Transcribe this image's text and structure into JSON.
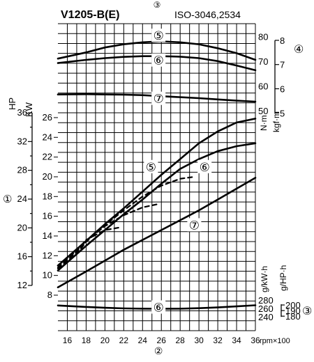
{
  "chart_data": {
    "type": "line",
    "title": "V1205-B(E)",
    "subtitle": "ISO-3046,2534",
    "x": {
      "label": "rpm×100",
      "marker": "②",
      "ticks": [
        "16",
        "18",
        "20",
        "22",
        "24",
        "26",
        "28",
        "30",
        "32",
        "34",
        "36"
      ],
      "range": [
        15,
        36
      ]
    },
    "left_axis_kw": {
      "unit": "KW",
      "ticks": [
        "8",
        "10",
        "12",
        "14",
        "16",
        "18",
        "20",
        "22",
        "24",
        "26"
      ],
      "range": [
        8,
        26
      ]
    },
    "left_axis_hp": {
      "unit": "HP",
      "marker": "①",
      "ticks": [
        "12",
        "16",
        "20",
        "24",
        "28",
        "32",
        "36"
      ],
      "range": [
        12,
        36
      ]
    },
    "torque_axis_nm": {
      "unit": "N·m",
      "ticks": [
        "50",
        "60",
        "70",
        "80"
      ],
      "range": [
        50,
        80
      ]
    },
    "torque_axis_kgfm": {
      "unit": "kgf·m",
      "marker": "④",
      "ticks": [
        "5",
        "6",
        "7",
        "8"
      ]
    },
    "fuel_axis_gkwh": {
      "unit": "g/kW·h",
      "ticks": [
        "240",
        "260",
        "280"
      ],
      "range": [
        240,
        280
      ]
    },
    "fuel_axis_ghph": {
      "unit": "g/HP·h",
      "marker": "③",
      "ticks": [
        "180",
        "190",
        "200"
      ]
    },
    "series": [
      {
        "name": "⑤",
        "group": "torque",
        "x": [
          15,
          18,
          20,
          22,
          24,
          26,
          28,
          30,
          32,
          34,
          36
        ],
        "y": [
          71,
          73.5,
          75.5,
          76.8,
          77.6,
          78,
          77.6,
          76.8,
          75.2,
          73.2,
          70.5
        ]
      },
      {
        "name": "⑥",
        "group": "torque",
        "x": [
          15,
          18,
          20,
          22,
          24,
          26,
          28,
          30,
          32,
          34,
          36
        ],
        "y": [
          69.2,
          70.5,
          71.2,
          71.7,
          72,
          72,
          71.8,
          71.2,
          70,
          68.2,
          66.3
        ]
      },
      {
        "name": "⑦",
        "group": "torque",
        "x": [
          15,
          18,
          20,
          22,
          24,
          26,
          28,
          30,
          32,
          34,
          36
        ],
        "y": [
          56.5,
          56.6,
          56.5,
          56.4,
          56.2,
          55.8,
          55.4,
          55,
          54.5,
          54,
          53.6
        ]
      },
      {
        "name": "⑤",
        "group": "power",
        "x": [
          15,
          18,
          20,
          22,
          24,
          26,
          28,
          30,
          32,
          34,
          36
        ],
        "y": [
          11,
          13.5,
          15.2,
          16.8,
          18.5,
          20.2,
          21.8,
          23.4,
          24.6,
          25.5,
          25.9
        ]
      },
      {
        "name": "⑥",
        "group": "power",
        "x": [
          15,
          18,
          20,
          22,
          24,
          26,
          28,
          30,
          32,
          34,
          36
        ],
        "y": [
          10.5,
          13,
          14.6,
          16.2,
          17.7,
          19.3,
          20.8,
          21.8,
          22.6,
          23.1,
          23.4
        ]
      },
      {
        "name": "⑦",
        "group": "power",
        "x": [
          15,
          18,
          20,
          22,
          24,
          26,
          28,
          30,
          32,
          34,
          36
        ],
        "y": [
          8.8,
          10.4,
          11.5,
          12.6,
          13.6,
          14.6,
          15.6,
          16.6,
          17.7,
          18.8,
          19.9
        ]
      },
      {
        "name": "⑥",
        "group": "fuel",
        "x": [
          15,
          18,
          20,
          22,
          24,
          26,
          28,
          30,
          32,
          34,
          36
        ],
        "y": [
          267,
          263.5,
          261.5,
          260,
          259.3,
          259,
          259.3,
          260.5,
          262.3,
          264.8,
          267.5
        ]
      }
    ],
    "dashed_curves": [
      {
        "x": [
          15,
          17,
          18,
          20,
          22,
          24,
          26,
          28,
          29.5
        ],
        "y": [
          10.7,
          12.2,
          13.4,
          15.1,
          16.6,
          18,
          19.1,
          19.8,
          20
        ]
      },
      {
        "x": [
          15,
          17,
          18,
          20,
          22,
          24,
          25.5
        ],
        "y": [
          10.8,
          12.4,
          13.5,
          15,
          16.1,
          16.9,
          17.2
        ]
      },
      {
        "x": [
          15,
          17,
          18,
          20,
          21.8
        ],
        "y": [
          11,
          12.5,
          13.6,
          14.6,
          14.9
        ]
      }
    ],
    "grid": true
  }
}
